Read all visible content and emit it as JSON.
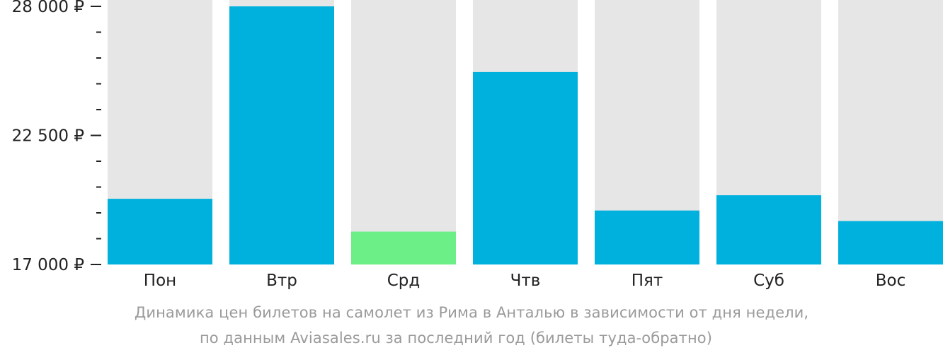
{
  "chart_data": {
    "type": "bar",
    "categories": [
      "Пон",
      "Втр",
      "Срд",
      "Чтв",
      "Пят",
      "Суб",
      "Вос"
    ],
    "values": [
      19800,
      28000,
      18400,
      25200,
      19300,
      19950,
      18850
    ],
    "ylim": [
      17000,
      28000
    ],
    "y_major_ticks": [
      {
        "value": 17000,
        "label": "17 000 ₽"
      },
      {
        "value": 22500,
        "label": "22 500 ₽"
      },
      {
        "value": 28000,
        "label": "28 000 ₽"
      }
    ],
    "y_minor_ticks": [
      18100,
      19200,
      20300,
      21400,
      23600,
      24700,
      25800,
      26900
    ],
    "grid": false,
    "colors": {
      "bar": "#00b0dd",
      "cheapest_bar": "#6cef87",
      "bar_background": "#e6e6e6",
      "axis_text": "#222222",
      "caption": "#9a9a9a"
    },
    "highlight_index": 2,
    "caption_line1": "Динамика цен билетов на самолет из Рима в Анталью в зависимости от дня недели,",
    "caption_line2": "по данным Aviasales.ru за последний год (билеты туда-обратно)"
  }
}
